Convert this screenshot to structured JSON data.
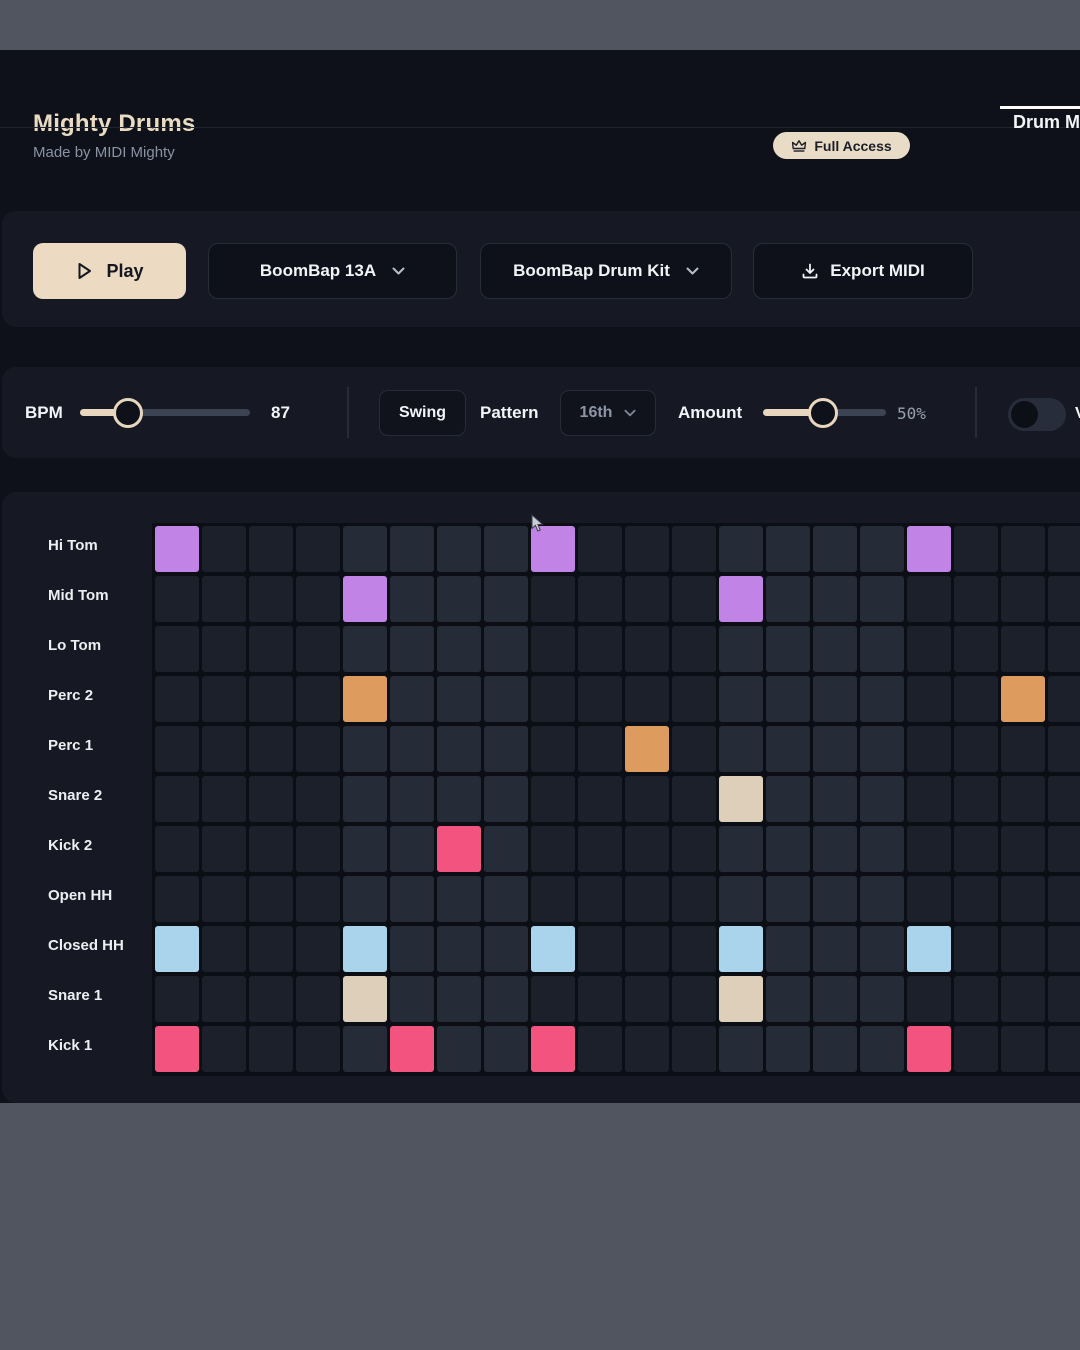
{
  "header": {
    "title": "Mighty Drums",
    "subtitle": "Made by MIDI Mighty",
    "tab_label": "Drum M",
    "badge_label": "Full Access"
  },
  "transport": {
    "play_label": "Play",
    "pattern_select_value": "BoomBap 13A",
    "kit_select_value": "BoomBap Drum Kit",
    "export_label": "Export MIDI"
  },
  "settings": {
    "bpm_label": "BPM",
    "bpm_value": "87",
    "swing_label": "Swing",
    "pattern_label": "Pattern",
    "pattern_value": "16th",
    "amount_label": "Amount",
    "amount_value": "50%"
  },
  "icons": {
    "play": "triangle-right-outline",
    "export": "download-tray",
    "badge": "crown-outline",
    "dropdown": "chevron-down",
    "pointer": "mouse-cursor-arrow"
  },
  "colors": {
    "accent_cream": "#ecdbc2",
    "panel": "#161924",
    "app_background": "#0e1119",
    "frame_grey": "#50555f",
    "cell_dark": "#1b202a",
    "cell_light": "#252b37",
    "tom_purple": "#c183e6",
    "perc_orange": "#dd9b5d",
    "snare_cream": "#ddcfb9",
    "kick_pink": "#f2547f",
    "hat_blue": "#a9d4ec"
  },
  "sequencer": {
    "num_steps": 20,
    "rows": [
      {
        "label": "Hi Tom",
        "color": "#c183e6",
        "steps": [
          0,
          8,
          16
        ]
      },
      {
        "label": "Mid Tom",
        "color": "#c183e6",
        "steps": [
          4,
          12
        ]
      },
      {
        "label": "Lo Tom",
        "color": "#c183e6",
        "steps": []
      },
      {
        "label": "Perc 2",
        "color": "#dd9b5d",
        "steps": [
          4,
          18
        ]
      },
      {
        "label": "Perc 1",
        "color": "#dd9b5d",
        "steps": [
          10
        ]
      },
      {
        "label": "Snare 2",
        "color": "#ddcfb9",
        "steps": [
          12
        ]
      },
      {
        "label": "Kick 2",
        "color": "#f2547f",
        "steps": [
          6
        ]
      },
      {
        "label": "Open HH",
        "color": "#a9d4ec",
        "steps": []
      },
      {
        "label": "Closed HH",
        "color": "#a9d4ec",
        "steps": [
          0,
          4,
          8,
          12,
          16
        ]
      },
      {
        "label": "Snare 1",
        "color": "#ddcfb9",
        "steps": [
          4,
          12
        ]
      },
      {
        "label": "Kick 1",
        "color": "#f2547f",
        "steps": [
          0,
          5,
          8,
          16
        ]
      }
    ]
  }
}
